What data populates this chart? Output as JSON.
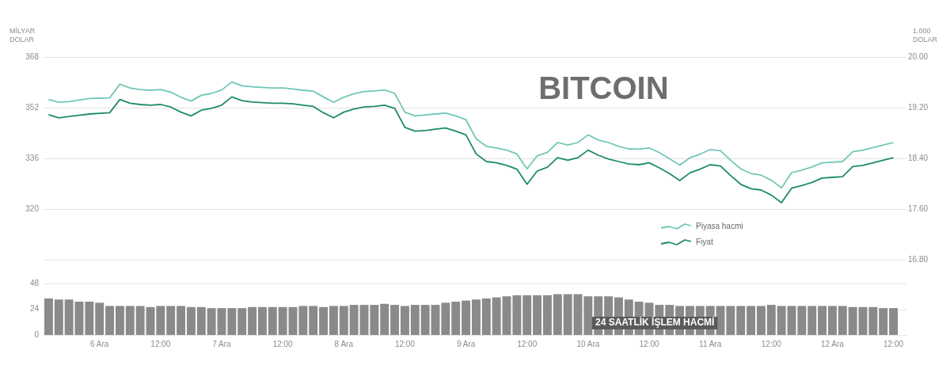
{
  "chart_data": [
    {
      "type": "line",
      "title": "BITCOIN",
      "ylabel": "MİLYAR DOLAR",
      "y2label": "1.000 DOLAR",
      "legend": "bottom right",
      "grid": "y",
      "marker": "none",
      "tick_labels": "y",
      "categories": [
        null,
        null,
        null,
        null,
        null,
        null,
        null,
        null,
        null,
        null,
        null,
        null,
        null,
        null,
        null,
        null,
        null,
        null,
        null,
        null,
        null,
        null,
        null,
        null,
        null,
        null,
        null,
        null,
        null,
        null,
        null,
        null,
        null,
        null,
        null,
        null,
        null,
        null,
        null,
        null,
        null,
        null,
        null,
        null,
        null,
        null,
        null,
        null,
        null,
        null,
        null,
        null,
        null,
        null,
        null,
        null,
        null,
        null,
        null,
        null,
        null,
        null,
        null,
        null,
        null,
        null,
        null,
        null,
        null,
        null,
        null,
        null,
        null,
        null,
        null,
        null,
        null,
        null,
        null,
        null,
        null,
        null,
        null,
        null
      ],
      "ylim": [
        304,
        368
      ],
      "yticks": [
        320,
        336,
        352,
        368
      ],
      "y2lim": [
        16.8,
        20
      ],
      "y2ticks": [
        {
          "value": 16.8,
          "label": "16.80"
        },
        {
          "value": 17.6,
          "label": "17.60"
        },
        {
          "value": 18.4,
          "label": "18.40"
        },
        {
          "value": 19.2,
          "label": "19.20"
        },
        {
          "value": 20,
          "label": "20.00"
        }
      ],
      "series": [
        {
          "name": "Piyasa hacmi",
          "color": "#72c7b7",
          "values": [
            354.6,
            353.7,
            353.9,
            354.4,
            354.9,
            355.0,
            355.1,
            359.4,
            358.2,
            357.7,
            357.5,
            357.7,
            356.9,
            355.3,
            354.1,
            355.9,
            356.5,
            357.6,
            360.1,
            358.9,
            358.6,
            358.4,
            358.2,
            358.2,
            357.9,
            357.5,
            357.2,
            355.4,
            353.7,
            355.3,
            356.4,
            357.1,
            357.3,
            357.6,
            356.5,
            350.6,
            349.4,
            349.7,
            350.0,
            350.3,
            349.4,
            348.2,
            342.2,
            339.8,
            339.3,
            338.6,
            337.4,
            332.7,
            336.8,
            337.9,
            341.0,
            340.2,
            341.0,
            343.4,
            341.8,
            341.0,
            339.8,
            339.0,
            338.9,
            339.3,
            337.8,
            335.9,
            333.9,
            336.2,
            337.3,
            338.8,
            338.4,
            335.4,
            332.7,
            331.2,
            330.7,
            329.1,
            326.7,
            331.5,
            332.3,
            333.3,
            334.6,
            334.8,
            335.0,
            338.1,
            338.6,
            339.4,
            340.2,
            341.0
          ]
        },
        {
          "name": "Fiyat",
          "color": "#1e8a6c",
          "axis": "y2",
          "values": [
            19.09,
            19.04,
            19.06,
            19.08,
            19.1,
            19.11,
            19.12,
            19.33,
            19.27,
            19.25,
            19.24,
            19.25,
            19.21,
            19.13,
            19.07,
            19.16,
            19.19,
            19.24,
            19.37,
            19.31,
            19.29,
            19.28,
            19.27,
            19.27,
            19.26,
            19.24,
            19.22,
            19.12,
            19.04,
            19.13,
            19.18,
            19.21,
            19.22,
            19.24,
            19.19,
            18.89,
            18.83,
            18.84,
            18.86,
            18.88,
            18.83,
            18.77,
            18.47,
            18.35,
            18.33,
            18.29,
            18.23,
            17.99,
            18.2,
            18.26,
            18.41,
            18.37,
            18.41,
            18.53,
            18.45,
            18.39,
            18.35,
            18.31,
            18.3,
            18.33,
            18.25,
            18.16,
            18.05,
            18.17,
            18.23,
            18.3,
            18.28,
            18.13,
            17.99,
            17.92,
            17.9,
            17.82,
            17.7,
            17.93,
            17.97,
            18.02,
            18.09,
            18.1,
            18.11,
            18.27,
            18.29,
            18.33,
            18.37,
            18.41
          ]
        }
      ]
    },
    {
      "type": "bar",
      "color": "#8a8a8a",
      "grid": "y",
      "annotations": [
        "24 SAATLİK İŞLEM HACMİ"
      ],
      "categories": [
        null,
        null,
        null,
        null,
        null,
        "6 Ara",
        null,
        null,
        null,
        null,
        null,
        "12:00",
        null,
        null,
        null,
        null,
        null,
        "7 Ara",
        null,
        null,
        null,
        null,
        null,
        "12:00",
        null,
        null,
        null,
        null,
        null,
        "8 Ara",
        null,
        null,
        null,
        null,
        null,
        "12:00",
        null,
        null,
        null,
        null,
        null,
        "9 Ara",
        null,
        null,
        null,
        null,
        null,
        "12:00",
        null,
        null,
        null,
        null,
        null,
        "10 Ara",
        null,
        null,
        null,
        null,
        null,
        "12:00",
        null,
        null,
        null,
        null,
        null,
        "11 Ara",
        null,
        null,
        null,
        null,
        null,
        "12:00",
        null,
        null,
        null,
        null,
        null,
        "12 Ara",
        null,
        null,
        null,
        null,
        null,
        "12:00"
      ],
      "ylim": [
        0,
        48
      ],
      "yticks": [
        0,
        24,
        48
      ],
      "values": [
        34,
        33,
        33,
        31,
        31,
        30,
        27,
        27,
        27,
        27,
        26,
        27,
        27,
        27,
        26,
        26,
        25,
        25,
        25,
        25,
        26,
        26,
        26,
        26,
        26,
        27,
        27,
        26,
        27,
        27,
        28,
        28,
        28,
        29,
        28,
        27,
        28,
        28,
        28,
        30,
        31,
        32,
        33,
        34,
        35,
        36,
        37,
        37,
        37,
        37,
        38,
        38,
        38,
        36,
        36,
        36,
        35,
        33,
        31,
        30,
        28,
        28,
        27,
        27,
        27,
        27,
        27,
        27,
        27,
        27,
        27,
        28,
        27,
        27,
        27,
        27,
        27,
        27,
        27,
        26,
        26,
        26,
        25,
        25
      ]
    }
  ]
}
